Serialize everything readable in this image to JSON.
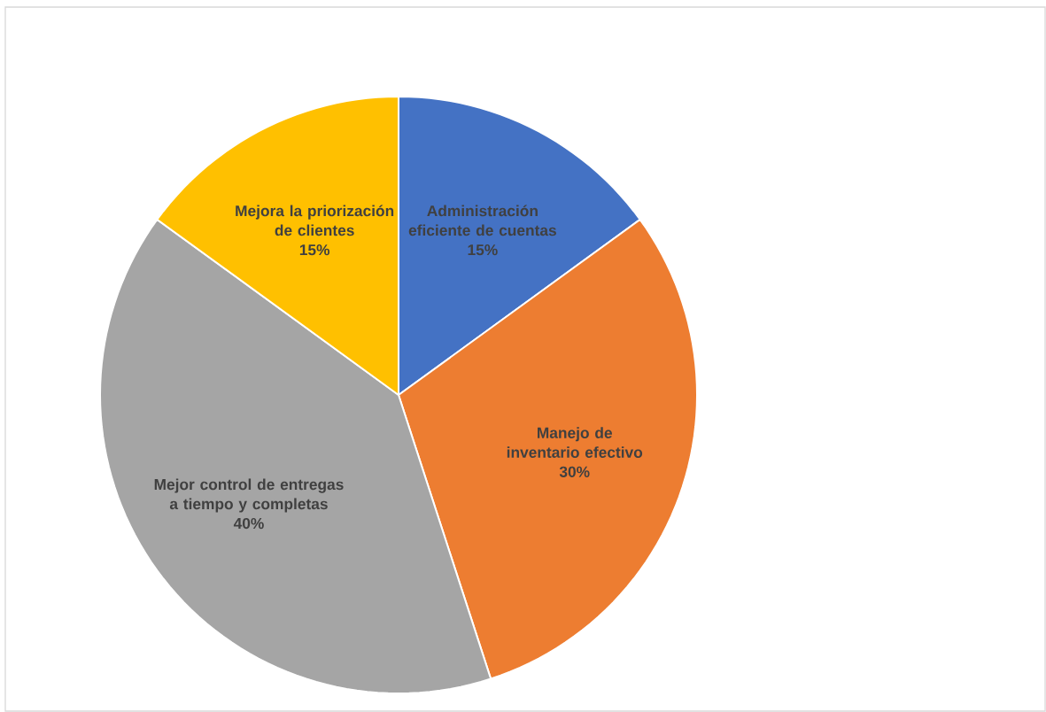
{
  "chart_data": {
    "type": "pie",
    "categories": [
      "Administración eficiente de cuentas",
      "Manejo de inventario efectivo",
      "Mejor control de entregas a tiempo y completas",
      "Mejora la priorización de clientes"
    ],
    "values": [
      15,
      30,
      40,
      15
    ],
    "value_labels": [
      "15%",
      "30%",
      "40%",
      "15%"
    ],
    "colors": [
      "#4472c4",
      "#ed7d31",
      "#a5a5a5",
      "#ffc000"
    ],
    "legend": false
  }
}
